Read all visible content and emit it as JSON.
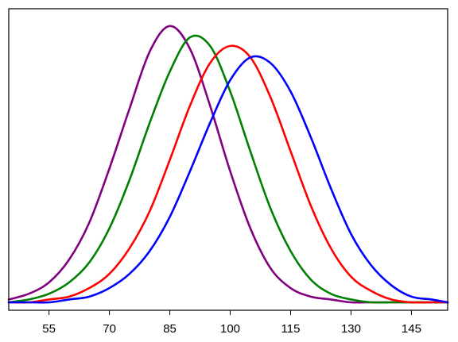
{
  "chart_data": {
    "type": "line",
    "title": "",
    "xlabel": "",
    "ylabel": "",
    "xlim": [
      45,
      154
    ],
    "ylim": [
      0,
      1
    ],
    "grid": false,
    "x_ticks": [
      55,
      70,
      85,
      100,
      115,
      130,
      145
    ],
    "x_tick_labels": [
      "55",
      "70",
      "85",
      "100",
      "115",
      "130",
      "145"
    ],
    "series": [
      {
        "color": "#800080",
        "x": [
          45,
          50,
          55,
          60,
          65,
          70,
          75,
          80,
          85,
          90,
          95,
          100,
          105,
          110,
          115,
          120,
          125,
          130,
          135,
          140,
          145,
          150,
          154
        ],
        "y": [
          0.01,
          0.03,
          0.07,
          0.15,
          0.28,
          0.47,
          0.68,
          0.88,
          0.97,
          0.89,
          0.69,
          0.46,
          0.26,
          0.12,
          0.05,
          0.02,
          0.01,
          0.0,
          0.0,
          0.0,
          0.0,
          0.0,
          0.0
        ]
      },
      {
        "color": "#008000",
        "x": [
          45,
          50,
          55,
          60,
          65,
          70,
          75,
          80,
          85,
          90,
          95,
          100,
          105,
          110,
          115,
          120,
          125,
          130,
          135,
          140,
          145,
          150,
          154
        ],
        "y": [
          0.0,
          0.01,
          0.03,
          0.07,
          0.14,
          0.26,
          0.43,
          0.63,
          0.81,
          0.93,
          0.9,
          0.74,
          0.53,
          0.33,
          0.18,
          0.08,
          0.03,
          0.01,
          0.0,
          0.0,
          0.0,
          0.0,
          0.0
        ]
      },
      {
        "color": "#ff0000",
        "x": [
          45,
          50,
          55,
          60,
          65,
          70,
          75,
          80,
          85,
          90,
          95,
          100,
          105,
          110,
          115,
          120,
          125,
          130,
          135,
          140,
          145,
          150,
          154
        ],
        "y": [
          0.0,
          0.0,
          0.01,
          0.02,
          0.05,
          0.1,
          0.19,
          0.32,
          0.5,
          0.69,
          0.84,
          0.9,
          0.86,
          0.72,
          0.53,
          0.34,
          0.19,
          0.09,
          0.04,
          0.01,
          0.0,
          0.0,
          0.0
        ]
      },
      {
        "color": "#0000ff",
        "x": [
          45,
          50,
          55,
          60,
          65,
          70,
          75,
          80,
          85,
          90,
          95,
          100,
          105,
          110,
          115,
          120,
          125,
          130,
          135,
          140,
          145,
          150,
          154
        ],
        "y": [
          0.0,
          0.0,
          0.0,
          0.01,
          0.02,
          0.05,
          0.1,
          0.18,
          0.3,
          0.46,
          0.63,
          0.78,
          0.86,
          0.84,
          0.74,
          0.58,
          0.4,
          0.24,
          0.13,
          0.06,
          0.02,
          0.01,
          0.0
        ]
      }
    ]
  }
}
